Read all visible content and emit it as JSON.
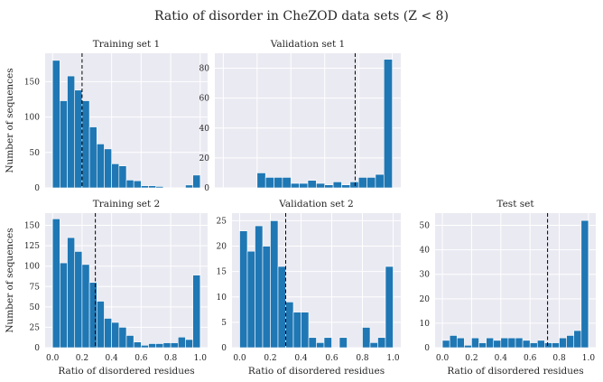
{
  "figure": {
    "title": "Ratio of disorder in CheZOD data sets (Z < 8)",
    "colors": {
      "bar": "#1f77b4",
      "panel_bg": "#eaeaf2",
      "grid": "#ffffff",
      "mean_line": "#000000"
    }
  },
  "chart_data": [
    {
      "type": "bar",
      "title": "Training set 1",
      "xlabel": "",
      "ylabel": "Number of sequences",
      "bin_width": 0.05,
      "bin_centers": [
        0.025,
        0.075,
        0.125,
        0.175,
        0.225,
        0.275,
        0.325,
        0.375,
        0.425,
        0.475,
        0.525,
        0.575,
        0.625,
        0.675,
        0.725,
        0.775,
        0.825,
        0.875,
        0.925,
        0.975
      ],
      "values": [
        180,
        123,
        158,
        138,
        123,
        86,
        62,
        55,
        34,
        31,
        11,
        10,
        3,
        3,
        2,
        0,
        0,
        0,
        4,
        18
      ],
      "mean_ratio": 0.2,
      "xlim": [
        -0.05,
        1.05
      ],
      "ylim": [
        0,
        190
      ],
      "xticks": [],
      "xtick_labels": [],
      "yticks": [
        0,
        50,
        100,
        150
      ],
      "ytick_labels": [
        "0",
        "50",
        "100",
        "150"
      ],
      "grid": true
    },
    {
      "type": "bar",
      "title": "Validation set 1",
      "xlabel": "",
      "ylabel": "",
      "bin_width": 0.05,
      "bin_centers": [
        0.025,
        0.075,
        0.125,
        0.175,
        0.225,
        0.275,
        0.325,
        0.375,
        0.425,
        0.475,
        0.525,
        0.575,
        0.625,
        0.675,
        0.725,
        0.775,
        0.825,
        0.875,
        0.925,
        0.975
      ],
      "values": [
        0,
        0,
        0,
        0,
        10,
        7,
        7,
        7,
        3,
        3,
        5,
        3,
        2,
        4,
        2,
        4,
        7,
        7,
        9,
        86
      ],
      "mean_ratio": 0.78,
      "xlim": [
        -0.05,
        1.05
      ],
      "ylim": [
        0,
        90
      ],
      "xticks": [],
      "xtick_labels": [],
      "yticks": [
        0,
        20,
        40,
        60,
        80
      ],
      "ytick_labels": [
        "0",
        "20",
        "40",
        "60",
        "80"
      ],
      "grid": true
    },
    {
      "type": "bar",
      "title": "Training set 2",
      "xlabel": "Ratio of disordered residues",
      "ylabel": "Number of sequences",
      "bin_width": 0.05,
      "bin_centers": [
        0.025,
        0.075,
        0.125,
        0.175,
        0.225,
        0.275,
        0.325,
        0.375,
        0.425,
        0.475,
        0.525,
        0.575,
        0.625,
        0.675,
        0.725,
        0.775,
        0.825,
        0.875,
        0.925,
        0.975
      ],
      "values": [
        158,
        104,
        135,
        118,
        102,
        80,
        57,
        36,
        31,
        25,
        15,
        7,
        3,
        5,
        5,
        6,
        6,
        13,
        10,
        89
      ],
      "mean_ratio": 0.29,
      "xlim": [
        -0.05,
        1.05
      ],
      "ylim": [
        0,
        165
      ],
      "xticks": [
        0.0,
        0.2,
        0.4,
        0.6,
        0.8,
        1.0
      ],
      "xtick_labels": [
        "0.0",
        "0.2",
        "0.4",
        "0.6",
        "0.8",
        "1.0"
      ],
      "yticks": [
        0,
        25,
        50,
        75,
        100,
        125,
        150
      ],
      "ytick_labels": [
        "0",
        "25",
        "50",
        "75",
        "100",
        "125",
        "150"
      ],
      "grid": true
    },
    {
      "type": "bar",
      "title": "Validation set 2",
      "xlabel": "Ratio of disordered residues",
      "ylabel": "",
      "bin_width": 0.05,
      "bin_centers": [
        0.025,
        0.075,
        0.125,
        0.175,
        0.225,
        0.275,
        0.325,
        0.375,
        0.425,
        0.475,
        0.525,
        0.575,
        0.625,
        0.675,
        0.725,
        0.775,
        0.825,
        0.875,
        0.925,
        0.975
      ],
      "values": [
        23,
        19,
        24,
        20,
        25,
        16,
        9,
        7,
        7,
        2,
        1,
        2,
        0,
        2,
        0,
        0,
        4,
        1,
        2,
        16
      ],
      "mean_ratio": 0.3,
      "xlim": [
        -0.05,
        1.05
      ],
      "ylim": [
        0,
        26.5
      ],
      "xticks": [
        0.0,
        0.2,
        0.4,
        0.6,
        0.8,
        1.0
      ],
      "xtick_labels": [
        "0.0",
        "0.2",
        "0.4",
        "0.6",
        "0.8",
        "1.0"
      ],
      "yticks": [
        0,
        5,
        10,
        15,
        20,
        25
      ],
      "ytick_labels": [
        "0",
        "5",
        "10",
        "15",
        "20",
        "25"
      ],
      "grid": true
    },
    {
      "type": "bar",
      "title": "Test set",
      "xlabel": "Ratio of disordered residues",
      "ylabel": "",
      "bin_width": 0.05,
      "bin_centers": [
        0.025,
        0.075,
        0.125,
        0.175,
        0.225,
        0.275,
        0.325,
        0.375,
        0.425,
        0.475,
        0.525,
        0.575,
        0.625,
        0.675,
        0.725,
        0.775,
        0.825,
        0.875,
        0.925,
        0.975
      ],
      "values": [
        3,
        5,
        4,
        1,
        4,
        2,
        4,
        3,
        4,
        4,
        4,
        3,
        2,
        3,
        2,
        2,
        4,
        5,
        7,
        52
      ],
      "mean_ratio": 0.72,
      "xlim": [
        -0.05,
        1.05
      ],
      "ylim": [
        0,
        55
      ],
      "xticks": [
        0.0,
        0.2,
        0.4,
        0.6,
        0.8,
        1.0
      ],
      "xtick_labels": [
        "0.0",
        "0.2",
        "0.4",
        "0.6",
        "0.8",
        "1.0"
      ],
      "yticks": [
        0,
        10,
        20,
        30,
        40,
        50
      ],
      "ytick_labels": [
        "0",
        "10",
        "20",
        "30",
        "40",
        "50"
      ],
      "grid": true
    }
  ]
}
